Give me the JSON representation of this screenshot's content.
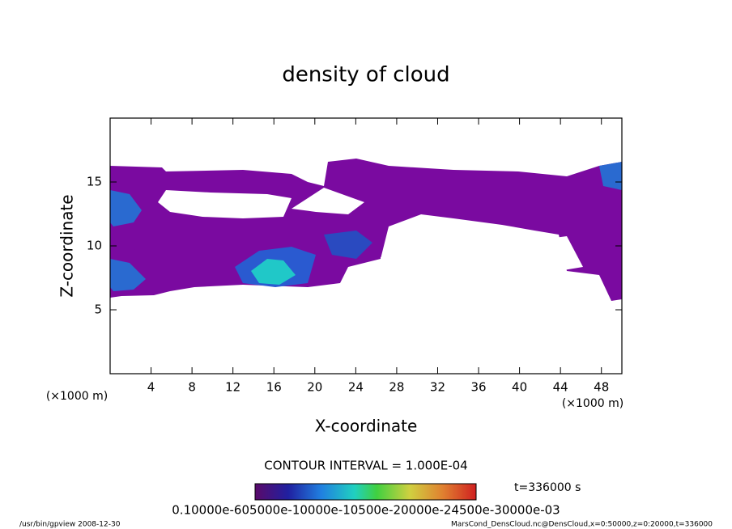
{
  "chart_data": {
    "type": "contour",
    "title": "density of cloud",
    "x_label": "X-coordinate",
    "y_label": "Z-coordinate",
    "x_unit": "(×1000 m)",
    "y_unit": "(×1000 m)",
    "xlim": [
      0,
      50
    ],
    "ylim": [
      0,
      20
    ],
    "xticks": [
      4,
      8,
      12,
      16,
      20,
      24,
      28,
      32,
      36,
      40,
      44,
      48
    ],
    "yticks": [
      5,
      10,
      15
    ],
    "contour_interval": "CONTOUR INTERVAL = 1.000E-04",
    "time": "t=336000 s",
    "colorbar_labels": "0.10000e-605000e-10000e-10500e-20000e-24500e-30000e-03",
    "footer_left": "/usr/bin/gpview   2008-12-30",
    "footer_right": "MarsCond_DensCloud.nc@DensCloud,x=0:50000,z=0:20000,t=336000"
  }
}
